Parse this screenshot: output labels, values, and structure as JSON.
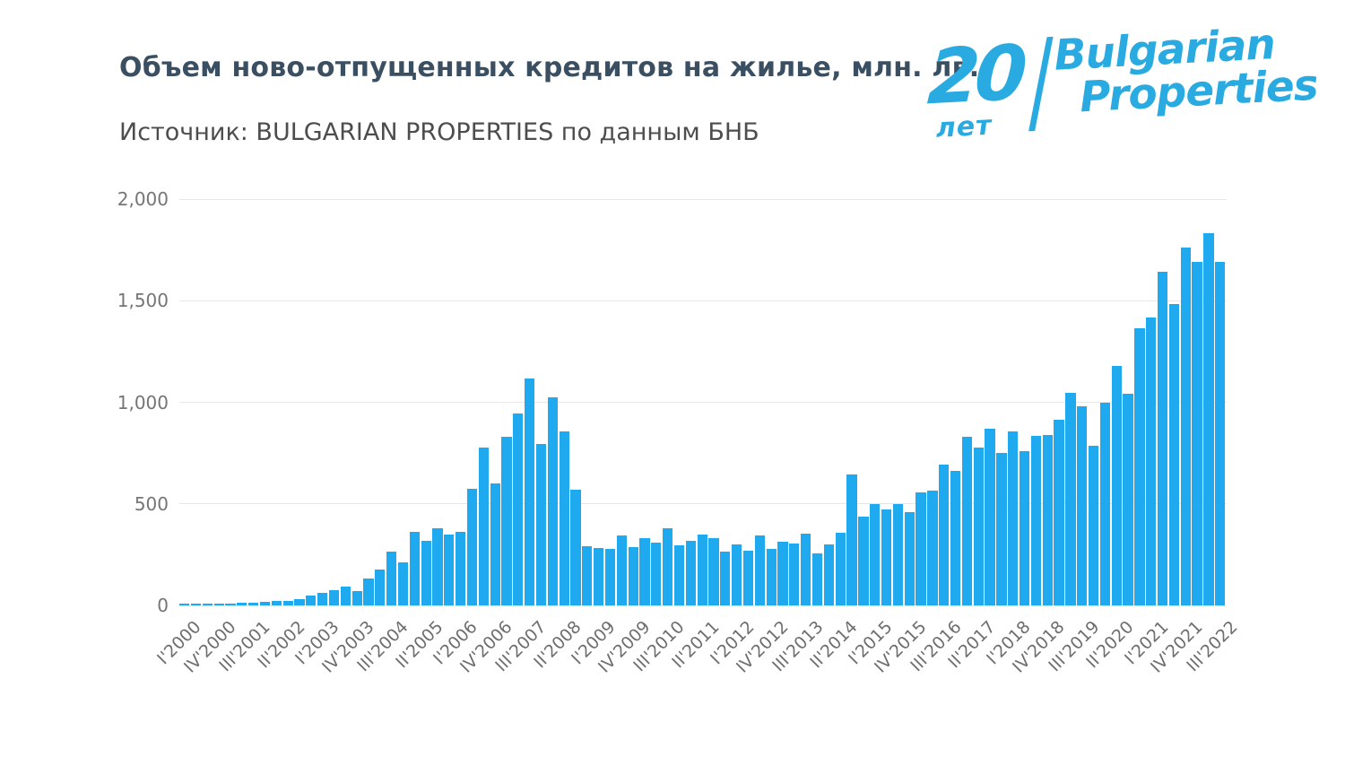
{
  "header": {
    "title": "Объем ново-отпущенных кредитов на жилье, млн. лв.",
    "subtitle": "Источник: BULGARIAN PROPERTIES по данным БНБ"
  },
  "logo": {
    "number": "20",
    "years_label": "лет",
    "brand_line1": "Bulgarian",
    "brand_line2": "Properties",
    "color": "#29abe2"
  },
  "chart_data": {
    "type": "bar",
    "title": "Объем ново-отпущенных кредитов на жилье, млн. лв.",
    "source": "BULGARIAN PROPERTIES по данным БНБ",
    "unit": "млн. лв.",
    "bar_color": "#1faaef",
    "grid": true,
    "ylim": [
      0,
      2000
    ],
    "y_ticks": [
      "0",
      "500",
      "1,000",
      "1,500",
      "2,000"
    ],
    "x_tick_step": 3,
    "x_tick_labels": [
      "I'2000",
      "IV'2000",
      "III'2001",
      "II'2002",
      "I'2003",
      "IV'2003",
      "III'2004",
      "II'2005",
      "I'2006",
      "IV'2006",
      "III'2007",
      "II'2008",
      "I'2009",
      "IV'2009",
      "III'2010",
      "II'2011",
      "I'2012",
      "IV'2012",
      "III'2013",
      "II'2014",
      "I'2015",
      "IV'2015",
      "III'2016",
      "II'2017",
      "I'2018",
      "IV'2018",
      "III'2019",
      "II'2020",
      "I'2021",
      "IV'2021",
      "III'2022"
    ],
    "categories": [
      "I'2000",
      "II'2000",
      "III'2000",
      "IV'2000",
      "I'2001",
      "II'2001",
      "III'2001",
      "IV'2001",
      "I'2002",
      "II'2002",
      "III'2002",
      "IV'2002",
      "I'2003",
      "II'2003",
      "III'2003",
      "IV'2003",
      "I'2004",
      "II'2004",
      "III'2004",
      "IV'2004",
      "I'2005",
      "II'2005",
      "III'2005",
      "IV'2005",
      "I'2006",
      "II'2006",
      "III'2006",
      "IV'2006",
      "I'2007",
      "II'2007",
      "III'2007",
      "IV'2007",
      "I'2008",
      "II'2008",
      "III'2008",
      "IV'2008",
      "I'2009",
      "II'2009",
      "III'2009",
      "IV'2009",
      "I'2010",
      "II'2010",
      "III'2010",
      "IV'2010",
      "I'2011",
      "II'2011",
      "III'2011",
      "IV'2011",
      "I'2012",
      "II'2012",
      "III'2012",
      "IV'2012",
      "I'2013",
      "II'2013",
      "III'2013",
      "IV'2013",
      "I'2014",
      "II'2014",
      "III'2014",
      "IV'2014",
      "I'2015",
      "II'2015",
      "III'2015",
      "IV'2015",
      "I'2016",
      "II'2016",
      "III'2016",
      "IV'2016",
      "I'2017",
      "II'2017",
      "III'2017",
      "IV'2017",
      "I'2018",
      "II'2018",
      "III'2018",
      "IV'2018",
      "I'2019",
      "II'2019",
      "III'2019",
      "IV'2019",
      "I'2020",
      "II'2020",
      "III'2020",
      "IV'2020",
      "I'2021",
      "II'2021",
      "III'2021",
      "IV'2021",
      "I'2022",
      "II'2022",
      "III'2022"
    ],
    "values": [
      5,
      6,
      7,
      8,
      11,
      13,
      15,
      18,
      21,
      24,
      32,
      50,
      62,
      77,
      91,
      71,
      133,
      177,
      265,
      211,
      361,
      320,
      380,
      350,
      361,
      575,
      777,
      600,
      829,
      947,
      1117,
      794,
      1024,
      858,
      569,
      291,
      284,
      278,
      343,
      288,
      333,
      310,
      380,
      295,
      317,
      350,
      332,
      267,
      299,
      271,
      344,
      276,
      314,
      304,
      351,
      258,
      299,
      358,
      645,
      438,
      497,
      472,
      501,
      457,
      556,
      563,
      693,
      664,
      829,
      779,
      869,
      749,
      857,
      760,
      835,
      838,
      914,
      1047,
      981,
      786,
      998,
      1180,
      1044,
      1364,
      1416,
      1642,
      1485,
      1763,
      1689,
      1832,
      1689
    ]
  }
}
